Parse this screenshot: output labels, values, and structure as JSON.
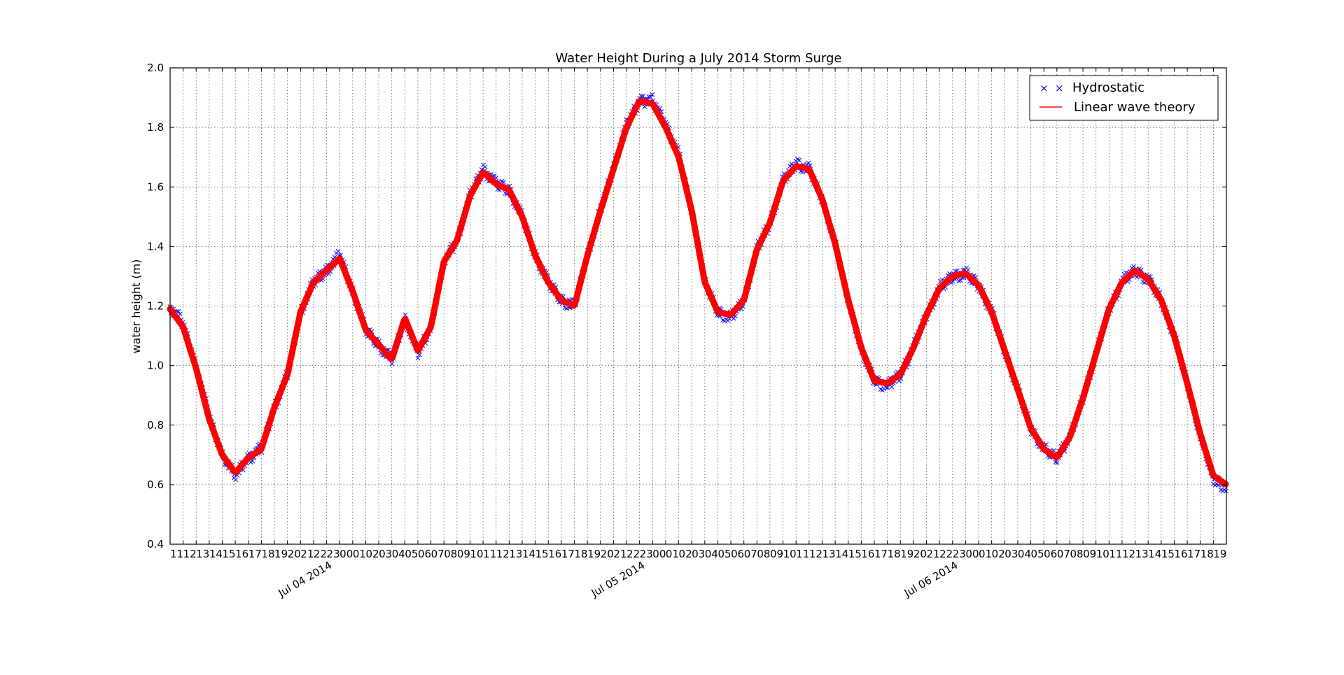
{
  "chart_data": {
    "type": "line",
    "title": "Water Height During a July 2014 Storm Surge",
    "xlabel": "",
    "ylabel": "water height (m)",
    "ylim": [
      0.4,
      2.0
    ],
    "xlim": [
      "2014-07-03T11:00",
      "2014-07-06T20:00"
    ],
    "yticks": [
      "0.4",
      "0.6",
      "0.8",
      "1.0",
      "1.2",
      "1.4",
      "1.6",
      "1.8",
      "2.0"
    ],
    "hour_labels": [
      "11",
      "12",
      "13",
      "14",
      "15",
      "16",
      "17",
      "18",
      "19",
      "20",
      "21",
      "22",
      "23",
      "00",
      "01",
      "02",
      "03",
      "04",
      "05",
      "06",
      "07",
      "08",
      "09",
      "10",
      "11",
      "12",
      "13",
      "14",
      "15",
      "16",
      "17",
      "18",
      "19",
      "20",
      "21",
      "22",
      "23",
      "00",
      "01",
      "02",
      "03",
      "04",
      "05",
      "06",
      "07",
      "08",
      "09",
      "10",
      "11",
      "12",
      "13",
      "14",
      "15",
      "16",
      "17",
      "18",
      "19",
      "20",
      "21",
      "22",
      "23",
      "00",
      "01",
      "02",
      "03",
      "04",
      "05",
      "06",
      "07",
      "08",
      "09",
      "10",
      "11",
      "12",
      "13",
      "14",
      "15",
      "16",
      "17",
      "18",
      "19"
    ],
    "date_labels": [
      {
        "label": "Jul 04 2014",
        "at": "2014-07-04T00:00"
      },
      {
        "label": "Jul 05 2014",
        "at": "2014-07-05T00:00"
      },
      {
        "label": "Jul 06 2014",
        "at": "2014-07-06T00:00"
      }
    ],
    "grid": true,
    "legend_position": "top-right",
    "x": [
      "2014-07-03T11:00",
      "2014-07-03T12:00",
      "2014-07-03T13:00",
      "2014-07-03T14:00",
      "2014-07-03T15:00",
      "2014-07-03T16:00",
      "2014-07-03T17:00",
      "2014-07-03T18:00",
      "2014-07-03T19:00",
      "2014-07-03T20:00",
      "2014-07-03T21:00",
      "2014-07-03T22:00",
      "2014-07-03T23:00",
      "2014-07-04T00:00",
      "2014-07-04T01:00",
      "2014-07-04T02:00",
      "2014-07-04T03:00",
      "2014-07-04T04:00",
      "2014-07-04T05:00",
      "2014-07-04T06:00",
      "2014-07-04T07:00",
      "2014-07-04T08:00",
      "2014-07-04T09:00",
      "2014-07-04T10:00",
      "2014-07-04T11:00",
      "2014-07-04T12:00",
      "2014-07-04T13:00",
      "2014-07-04T14:00",
      "2014-07-04T15:00",
      "2014-07-04T16:00",
      "2014-07-04T17:00",
      "2014-07-04T18:00",
      "2014-07-04T19:00",
      "2014-07-04T20:00",
      "2014-07-04T21:00",
      "2014-07-04T22:00",
      "2014-07-04T23:00",
      "2014-07-05T00:00",
      "2014-07-05T01:00",
      "2014-07-05T02:00",
      "2014-07-05T03:00",
      "2014-07-05T04:00",
      "2014-07-05T05:00",
      "2014-07-05T06:00",
      "2014-07-05T07:00",
      "2014-07-05T08:00",
      "2014-07-05T09:00",
      "2014-07-05T10:00",
      "2014-07-05T11:00",
      "2014-07-05T12:00",
      "2014-07-05T13:00",
      "2014-07-05T14:00",
      "2014-07-05T15:00",
      "2014-07-05T16:00",
      "2014-07-05T17:00",
      "2014-07-05T18:00",
      "2014-07-05T19:00",
      "2014-07-05T20:00",
      "2014-07-05T21:00",
      "2014-07-05T22:00",
      "2014-07-05T23:00",
      "2014-07-06T00:00",
      "2014-07-06T01:00",
      "2014-07-06T02:00",
      "2014-07-06T03:00",
      "2014-07-06T04:00",
      "2014-07-06T05:00",
      "2014-07-06T06:00",
      "2014-07-06T07:00",
      "2014-07-06T08:00",
      "2014-07-06T09:00",
      "2014-07-06T10:00",
      "2014-07-06T11:00",
      "2014-07-06T12:00",
      "2014-07-06T13:00",
      "2014-07-06T14:00",
      "2014-07-06T15:00",
      "2014-07-06T16:00",
      "2014-07-06T17:00",
      "2014-07-06T18:00",
      "2014-07-06T19:00",
      "2014-07-06T20:00"
    ],
    "series": [
      {
        "name": "Hydrostatic",
        "style": "markers",
        "marker": "x",
        "color": "#0000ff",
        "values": [
          1.2,
          1.14,
          1.0,
          0.83,
          0.7,
          0.63,
          0.69,
          0.72,
          0.86,
          0.97,
          1.18,
          1.28,
          1.32,
          1.37,
          1.25,
          1.12,
          1.07,
          1.02,
          1.16,
          1.04,
          1.13,
          1.35,
          1.42,
          1.57,
          1.66,
          1.61,
          1.59,
          1.5,
          1.37,
          1.28,
          1.22,
          1.2,
          1.37,
          1.52,
          1.67,
          1.81,
          1.89,
          1.89,
          1.81,
          1.71,
          1.52,
          1.28,
          1.18,
          1.16,
          1.22,
          1.39,
          1.48,
          1.62,
          1.68,
          1.66,
          1.56,
          1.41,
          1.22,
          1.05,
          0.95,
          0.93,
          0.97,
          1.06,
          1.17,
          1.26,
          1.3,
          1.31,
          1.27,
          1.18,
          1.05,
          0.92,
          0.79,
          0.72,
          0.69,
          0.76,
          0.89,
          1.04,
          1.19,
          1.28,
          1.32,
          1.29,
          1.22,
          1.1,
          0.94,
          0.76,
          0.62,
          0.59
        ]
      },
      {
        "name": "Linear wave theory",
        "style": "line",
        "color": "#ff0000",
        "values": [
          1.19,
          1.13,
          0.99,
          0.82,
          0.7,
          0.64,
          0.69,
          0.72,
          0.86,
          0.97,
          1.18,
          1.28,
          1.32,
          1.36,
          1.25,
          1.12,
          1.07,
          1.02,
          1.16,
          1.05,
          1.13,
          1.35,
          1.42,
          1.57,
          1.65,
          1.61,
          1.59,
          1.5,
          1.37,
          1.28,
          1.22,
          1.2,
          1.37,
          1.52,
          1.66,
          1.8,
          1.89,
          1.88,
          1.8,
          1.7,
          1.52,
          1.28,
          1.18,
          1.17,
          1.22,
          1.39,
          1.48,
          1.62,
          1.67,
          1.66,
          1.56,
          1.41,
          1.22,
          1.06,
          0.95,
          0.94,
          0.97,
          1.06,
          1.17,
          1.26,
          1.3,
          1.31,
          1.27,
          1.18,
          1.05,
          0.92,
          0.79,
          0.72,
          0.69,
          0.76,
          0.89,
          1.04,
          1.19,
          1.28,
          1.32,
          1.29,
          1.22,
          1.1,
          0.94,
          0.77,
          0.63,
          0.6
        ]
      }
    ]
  }
}
